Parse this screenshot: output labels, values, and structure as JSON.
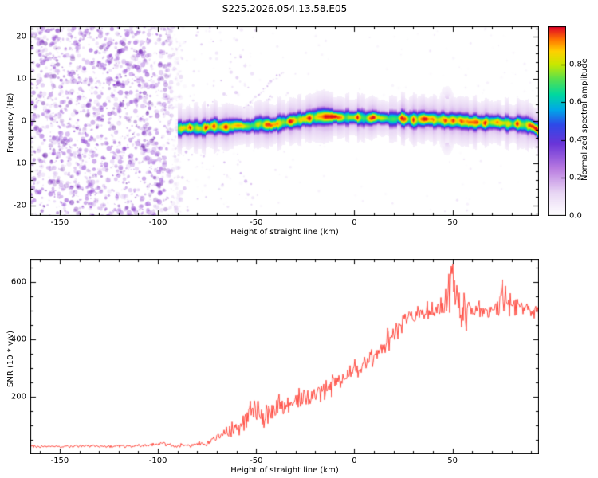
{
  "title": "S225.2026.054.13.58.E05",
  "chart_data": [
    {
      "type": "heatmap",
      "title": "S225.2026.054.13.58.E05",
      "xlabel": "Height of straight line (km)",
      "ylabel": "Frequency (Hz)",
      "xlim": [
        -165,
        94
      ],
      "ylim": [
        -22.5,
        22.5
      ],
      "xticks": [
        -150,
        -100,
        -50,
        0,
        50
      ],
      "yticks": [
        -20,
        -10,
        0,
        10,
        20
      ],
      "minor_x_step": 10,
      "minor_y_step": 2,
      "colorbar": {
        "label": "Normalized spectral amplitude",
        "tick_labels": [
          "0.0",
          "0.2",
          "0.4",
          "0.6",
          "0.8"
        ],
        "tick_values": [
          0,
          0.2,
          0.4,
          0.6,
          0.8
        ],
        "range": [
          0,
          1
        ],
        "stops": [
          [
            0,
            "#ffffff"
          ],
          [
            0.12,
            "#e8d6f4"
          ],
          [
            0.25,
            "#b87ae0"
          ],
          [
            0.38,
            "#6a35d8"
          ],
          [
            0.48,
            "#2f49e8"
          ],
          [
            0.56,
            "#00a8e8"
          ],
          [
            0.64,
            "#00d8a0"
          ],
          [
            0.72,
            "#55e050"
          ],
          [
            0.8,
            "#c8e800"
          ],
          [
            0.87,
            "#ffd000"
          ],
          [
            0.93,
            "#ff7800"
          ],
          [
            1,
            "#e00028"
          ]
        ]
      },
      "noise": {
        "seed": 1337,
        "color_hue": 272,
        "dense_x_range": [
          -165,
          -88
        ],
        "dense_count": 1700,
        "mid_x_range": [
          -88,
          -50
        ],
        "mid_count": 130,
        "faint_count": 260
      },
      "streaks": [
        {
          "from": [
            -58,
            2
          ],
          "to": [
            -36,
            12
          ]
        },
        {
          "from": [
            -52,
            1
          ],
          "to": [
            -42,
            6
          ]
        }
      ],
      "ridge": {
        "x_start": -90,
        "x_end": 94,
        "sigma_hz": 1.15,
        "freq_points": [
          [
            -90,
            -1.8
          ],
          [
            -84,
            -1.4
          ],
          [
            -78,
            -1.7
          ],
          [
            -72,
            -1.1
          ],
          [
            -66,
            -1.4
          ],
          [
            -60,
            -0.9
          ],
          [
            -54,
            -1.2
          ],
          [
            -48,
            -0.6
          ],
          [
            -42,
            -0.9
          ],
          [
            -36,
            -0.2
          ],
          [
            -30,
            0.2
          ],
          [
            -24,
            0.7
          ],
          [
            -18,
            1.1
          ],
          [
            -12,
            1.2
          ],
          [
            -6,
            0.9
          ],
          [
            0,
            1.0
          ],
          [
            6,
            0.8
          ],
          [
            12,
            0.9
          ],
          [
            18,
            0.6
          ],
          [
            24,
            0.7
          ],
          [
            30,
            0.4
          ],
          [
            36,
            0.6
          ],
          [
            42,
            0.4
          ],
          [
            48,
            0.2
          ],
          [
            54,
            0.1
          ],
          [
            60,
            -0.2
          ],
          [
            66,
            -0.3
          ],
          [
            72,
            -0.2
          ],
          [
            78,
            -0.5
          ],
          [
            84,
            -0.6
          ],
          [
            90,
            -1.0
          ],
          [
            94,
            -2.2
          ]
        ],
        "spreads": [
          {
            "x": -85,
            "hw": 1.2,
            "s": 1.5,
            "v": 0.35
          },
          {
            "x": 0,
            "hw": 2.0,
            "s": 2.0,
            "v": 0.35
          },
          {
            "x": 47,
            "hw": 2.5,
            "s": 4.0,
            "v": 0.42
          },
          {
            "x": 58,
            "hw": 1.5,
            "s": 2.0,
            "v": 0.3
          },
          {
            "x": 90,
            "hw": 1.5,
            "s": 2.5,
            "v": 0.35
          }
        ]
      }
    },
    {
      "type": "line",
      "xlabel": "Height of straight line (km)",
      "ylabel": "SNR (10 * v/v)",
      "xlim": [
        -165,
        94
      ],
      "ylim": [
        0,
        680
      ],
      "xticks": [
        -150,
        -100,
        -50,
        0,
        50
      ],
      "yticks": [
        200,
        400,
        600
      ],
      "minor_x_step": 10,
      "minor_y_step": 50,
      "line_color": "#ff3b30",
      "seed": 77,
      "base_points": [
        [
          -165,
          28
        ],
        [
          -150,
          27
        ],
        [
          -140,
          29
        ],
        [
          -130,
          27
        ],
        [
          -120,
          28
        ],
        [
          -110,
          28
        ],
        [
          -103,
          33
        ],
        [
          -98,
          36
        ],
        [
          -95,
          31
        ],
        [
          -90,
          30
        ],
        [
          -85,
          31
        ],
        [
          -80,
          33
        ],
        [
          -76,
          38
        ],
        [
          -72,
          48
        ],
        [
          -68,
          62
        ],
        [
          -64,
          80
        ],
        [
          -60,
          98
        ],
        [
          -57,
          112
        ],
        [
          -54,
          135
        ],
        [
          -52,
          158
        ],
        [
          -50,
          148
        ],
        [
          -48,
          125
        ],
        [
          -46,
          138
        ],
        [
          -44,
          148
        ],
        [
          -42,
          138
        ],
        [
          -40,
          152
        ],
        [
          -38,
          168
        ],
        [
          -36,
          158
        ],
        [
          -34,
          172
        ],
        [
          -32,
          182
        ],
        [
          -30,
          196
        ],
        [
          -28,
          188
        ],
        [
          -26,
          202
        ],
        [
          -24,
          194
        ],
        [
          -22,
          206
        ],
        [
          -20,
          214
        ],
        [
          -18,
          222
        ],
        [
          -16,
          214
        ],
        [
          -14,
          228
        ],
        [
          -12,
          238
        ],
        [
          -10,
          248
        ],
        [
          -8,
          243
        ],
        [
          -6,
          252
        ],
        [
          -4,
          262
        ],
        [
          -2,
          272
        ],
        [
          0,
          288
        ],
        [
          2,
          296
        ],
        [
          4,
          306
        ],
        [
          6,
          318
        ],
        [
          8,
          332
        ],
        [
          10,
          348
        ],
        [
          12,
          362
        ],
        [
          14,
          374
        ],
        [
          16,
          388
        ],
        [
          18,
          404
        ],
        [
          20,
          420
        ],
        [
          22,
          434
        ],
        [
          24,
          448
        ],
        [
          26,
          458
        ],
        [
          28,
          468
        ],
        [
          30,
          478
        ],
        [
          32,
          484
        ],
        [
          34,
          489
        ],
        [
          36,
          494
        ],
        [
          38,
          499
        ],
        [
          40,
          503
        ],
        [
          42,
          504
        ],
        [
          44,
          508
        ],
        [
          46,
          514
        ],
        [
          48,
          520
        ],
        [
          50,
          526
        ],
        [
          52,
          518
        ],
        [
          54,
          512
        ],
        [
          56,
          508
        ],
        [
          58,
          503
        ],
        [
          60,
          498
        ],
        [
          62,
          497
        ],
        [
          64,
          500
        ],
        [
          66,
          504
        ],
        [
          68,
          505
        ],
        [
          70,
          509
        ],
        [
          72,
          511
        ],
        [
          74,
          514
        ],
        [
          76,
          515
        ],
        [
          78,
          517
        ],
        [
          80,
          521
        ],
        [
          82,
          518
        ],
        [
          84,
          514
        ],
        [
          86,
          511
        ],
        [
          88,
          509
        ],
        [
          90,
          505
        ],
        [
          92,
          500
        ],
        [
          94,
          495
        ]
      ],
      "noise_amp_points": [
        [
          -165,
          4
        ],
        [
          -120,
          4
        ],
        [
          -100,
          6
        ],
        [
          -90,
          5
        ],
        [
          -80,
          7
        ],
        [
          -74,
          10
        ],
        [
          -68,
          15
        ],
        [
          -62,
          22
        ],
        [
          -56,
          30
        ],
        [
          -50,
          38
        ],
        [
          -45,
          35
        ],
        [
          -40,
          33
        ],
        [
          -35,
          31
        ],
        [
          -30,
          29
        ],
        [
          -25,
          28
        ],
        [
          -20,
          30
        ],
        [
          -15,
          29
        ],
        [
          -10,
          28
        ],
        [
          -5,
          29
        ],
        [
          0,
          28
        ],
        [
          5,
          30
        ],
        [
          10,
          33
        ],
        [
          15,
          35
        ],
        [
          20,
          33
        ],
        [
          25,
          30
        ],
        [
          30,
          27
        ],
        [
          35,
          26
        ],
        [
          40,
          28
        ],
        [
          44,
          36
        ],
        [
          47,
          52
        ],
        [
          50,
          62
        ],
        [
          53,
          50
        ],
        [
          56,
          38
        ],
        [
          60,
          30
        ],
        [
          64,
          26
        ],
        [
          68,
          28
        ],
        [
          72,
          32
        ],
        [
          76,
          34
        ],
        [
          80,
          30
        ],
        [
          84,
          28
        ],
        [
          88,
          26
        ],
        [
          91,
          25
        ],
        [
          94,
          23
        ]
      ],
      "spikes": [
        [
          46.6,
          575
        ],
        [
          48.2,
          628
        ],
        [
          49.3,
          655
        ],
        [
          50.1,
          662
        ],
        [
          51.0,
          605
        ],
        [
          52.2,
          588
        ],
        [
          54.6,
          442
        ],
        [
          56.9,
          430
        ],
        [
          75.4,
          608
        ],
        [
          77.1,
          586
        ]
      ]
    }
  ]
}
